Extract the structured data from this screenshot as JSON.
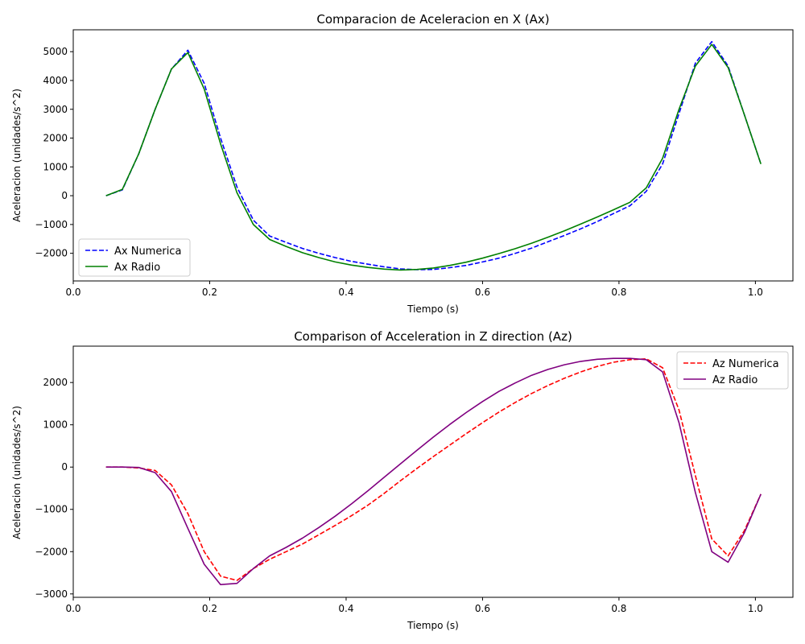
{
  "chart_data": [
    {
      "type": "line",
      "title": "Comparacion de Aceleracion en X (Ax)",
      "xlabel": "Tiempo (s)",
      "ylabel": "Aceleracion (unidades/s^2)",
      "xlim": [
        0.0,
        1.055
      ],
      "ylim": [
        -2960,
        5760
      ],
      "xticks": [
        "0.0",
        "0.2",
        "0.4",
        "0.6",
        "0.8",
        "1.0"
      ],
      "yticks": [
        "−2000",
        "−1000",
        "0",
        "1000",
        "2000",
        "3000",
        "4000",
        "5000"
      ],
      "legend_position": "lower-left",
      "series": [
        {
          "name": "Ax Numerica",
          "color": "#0000ff",
          "dash": "dashed",
          "x": [
            0.048,
            0.072,
            0.096,
            0.12,
            0.144,
            0.168,
            0.192,
            0.216,
            0.24,
            0.264,
            0.288,
            0.312,
            0.336,
            0.36,
            0.384,
            0.408,
            0.432,
            0.456,
            0.48,
            0.504,
            0.528,
            0.552,
            0.576,
            0.6,
            0.624,
            0.648,
            0.672,
            0.696,
            0.72,
            0.744,
            0.768,
            0.792,
            0.816,
            0.84,
            0.864,
            0.888,
            0.912,
            0.936,
            0.96,
            0.984,
            1.008
          ],
          "y": [
            0,
            200,
            1450,
            3000,
            4400,
            5050,
            3900,
            2000,
            300,
            -850,
            -1400,
            -1620,
            -1830,
            -2000,
            -2150,
            -2280,
            -2380,
            -2470,
            -2540,
            -2570,
            -2560,
            -2500,
            -2420,
            -2300,
            -2170,
            -2000,
            -1820,
            -1600,
            -1380,
            -1150,
            -900,
            -620,
            -350,
            150,
            1100,
            2850,
            4600,
            5350,
            4500,
            2800,
            1100
          ]
        },
        {
          "name": "Ax Radio",
          "color": "#008000",
          "dash": "solid",
          "x": [
            0.048,
            0.072,
            0.096,
            0.12,
            0.144,
            0.168,
            0.192,
            0.216,
            0.24,
            0.264,
            0.288,
            0.312,
            0.336,
            0.36,
            0.384,
            0.408,
            0.432,
            0.456,
            0.48,
            0.504,
            0.528,
            0.552,
            0.576,
            0.6,
            0.624,
            0.648,
            0.672,
            0.696,
            0.72,
            0.744,
            0.768,
            0.792,
            0.816,
            0.84,
            0.864,
            0.888,
            0.912,
            0.936,
            0.96,
            0.984,
            1.008
          ],
          "y": [
            0,
            220,
            1450,
            3000,
            4400,
            4970,
            3700,
            1800,
            100,
            -1000,
            -1520,
            -1760,
            -1980,
            -2150,
            -2300,
            -2410,
            -2490,
            -2550,
            -2580,
            -2560,
            -2510,
            -2420,
            -2310,
            -2170,
            -2010,
            -1840,
            -1650,
            -1440,
            -1220,
            -980,
            -740,
            -490,
            -230,
            270,
            1300,
            3000,
            4500,
            5250,
            4450,
            2800,
            1100
          ]
        }
      ]
    },
    {
      "type": "line",
      "title": "Comparison of Acceleration in Z direction (Az)",
      "xlabel": "Tiempo (s)",
      "ylabel": "Aceleracion (unidades/s^2)",
      "xlim": [
        0.0,
        1.055
      ],
      "ylim": [
        -3080,
        2860
      ],
      "xticks": [
        "0.0",
        "0.2",
        "0.4",
        "0.6",
        "0.8",
        "1.0"
      ],
      "yticks": [
        "−3000",
        "−2000",
        "−1000",
        "0",
        "1000",
        "2000"
      ],
      "legend_position": "upper-right",
      "series": [
        {
          "name": "Az Numerica",
          "color": "#ff0000",
          "dash": "dashed",
          "x": [
            0.048,
            0.072,
            0.096,
            0.12,
            0.144,
            0.168,
            0.192,
            0.216,
            0.24,
            0.264,
            0.288,
            0.312,
            0.336,
            0.36,
            0.384,
            0.408,
            0.432,
            0.456,
            0.48,
            0.504,
            0.528,
            0.552,
            0.576,
            0.6,
            0.624,
            0.648,
            0.672,
            0.696,
            0.72,
            0.744,
            0.768,
            0.792,
            0.816,
            0.84,
            0.864,
            0.888,
            0.912,
            0.936,
            0.96,
            0.984,
            1.008
          ],
          "y": [
            0,
            0,
            -20,
            -80,
            -420,
            -1100,
            -2000,
            -2580,
            -2680,
            -2400,
            -2180,
            -2000,
            -1820,
            -1600,
            -1380,
            -1150,
            -900,
            -620,
            -320,
            -30,
            250,
            520,
            790,
            1050,
            1300,
            1530,
            1740,
            1930,
            2100,
            2250,
            2380,
            2480,
            2540,
            2560,
            2350,
            1350,
            -200,
            -1700,
            -2100,
            -1500,
            -640
          ]
        },
        {
          "name": "Az Radio",
          "color": "#800080",
          "dash": "solid",
          "x": [
            0.048,
            0.072,
            0.096,
            0.12,
            0.144,
            0.168,
            0.192,
            0.216,
            0.24,
            0.264,
            0.288,
            0.312,
            0.336,
            0.36,
            0.384,
            0.408,
            0.432,
            0.456,
            0.48,
            0.504,
            0.528,
            0.552,
            0.576,
            0.6,
            0.624,
            0.648,
            0.672,
            0.696,
            0.72,
            0.744,
            0.768,
            0.792,
            0.816,
            0.84,
            0.864,
            0.888,
            0.912,
            0.936,
            0.96,
            0.984,
            1.008
          ],
          "y": [
            0,
            0,
            -10,
            -130,
            -580,
            -1450,
            -2300,
            -2780,
            -2750,
            -2400,
            -2100,
            -1900,
            -1680,
            -1430,
            -1160,
            -870,
            -560,
            -240,
            80,
            400,
            710,
            1010,
            1290,
            1550,
            1790,
            1990,
            2170,
            2310,
            2420,
            2500,
            2550,
            2570,
            2570,
            2540,
            2250,
            1050,
            -600,
            -2000,
            -2250,
            -1550,
            -640
          ]
        }
      ]
    }
  ]
}
